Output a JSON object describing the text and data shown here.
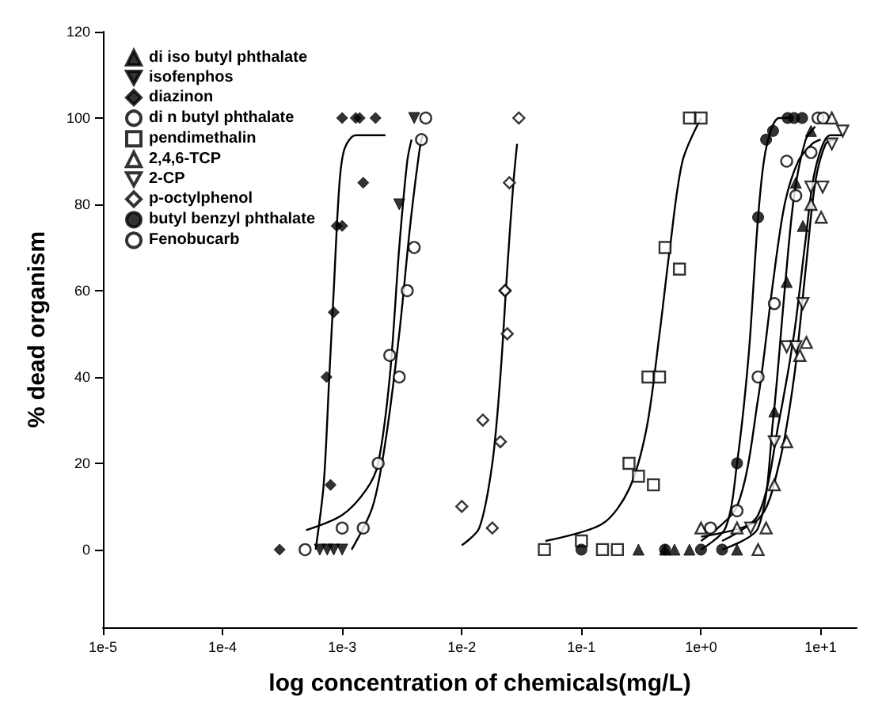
{
  "chart_data": {
    "type": "scatter",
    "xlabel": "log concentration of chemicals(mg/L)",
    "ylabel": "% dead organism",
    "log": "x",
    "grid": false,
    "legend": "top left",
    "xlim": [
      1e-05,
      20
    ],
    "xticks": [
      {
        "value": 1e-05,
        "label": "1e-5"
      },
      {
        "value": 0.0001,
        "label": "1e-4"
      },
      {
        "value": 0.001,
        "label": "1e-3"
      },
      {
        "value": 0.01,
        "label": "1e-2"
      },
      {
        "value": 0.1,
        "label": "1e-1"
      },
      {
        "value": 1,
        "label": "1e+0"
      },
      {
        "value": 10,
        "label": "1e+1"
      }
    ],
    "ylim": [
      -18,
      120
    ],
    "yticks": [
      0,
      20,
      40,
      60,
      80,
      100,
      120
    ],
    "series": [
      {
        "name": "di iso butyl phthalate",
        "marker": "triangle",
        "color": "#000000",
        "x": [
          0.3,
          0.5,
          0.6,
          0.8,
          2.0,
          4.1,
          5.2,
          6.2,
          7.1,
          8.3
        ],
        "values": [
          0,
          0,
          0,
          0,
          0,
          32,
          62,
          85,
          75,
          97
        ]
      },
      {
        "name": "isofenphos",
        "marker": "triangle-down",
        "color": "#000000",
        "x": [
          0.00065,
          0.00075,
          0.00085,
          0.001,
          0.003,
          0.004
        ],
        "values": [
          0,
          0,
          0,
          0,
          80,
          100
        ]
      },
      {
        "name": "diazinon",
        "marker": "diamond",
        "color": "#000000",
        "x": [
          0.0003,
          0.0008,
          0.00074,
          0.00085,
          0.0009,
          0.001,
          0.0015,
          0.001,
          0.0013,
          0.0014,
          0.0019
        ],
        "values": [
          0,
          15,
          40,
          55,
          75,
          75,
          85,
          100,
          100,
          100,
          100
        ]
      },
      {
        "name": "di n butyl phthalate",
        "marker": "circle-open",
        "color": "#000000",
        "x": [
          1.2,
          2.0,
          3.0,
          4.1,
          5.2,
          6.2,
          8.3,
          9.5,
          10.5
        ],
        "values": [
          5,
          9,
          40,
          57,
          90,
          82,
          92,
          100,
          100
        ]
      },
      {
        "name": "pendimethalin",
        "marker": "square-open",
        "color": "#000000",
        "x": [
          0.049,
          0.1,
          0.15,
          0.2,
          0.25,
          0.3,
          0.4,
          0.36,
          0.45,
          0.5,
          0.66,
          0.8,
          1.0
        ],
        "values": [
          0,
          2,
          0,
          0,
          20,
          17,
          15,
          40,
          40,
          70,
          65,
          100,
          100
        ]
      },
      {
        "name": "2,4,6-TCP",
        "marker": "triangle-open",
        "color": "#000000",
        "x": [
          1.0,
          2.0,
          3.0,
          3.5,
          4.1,
          5.2,
          6.7,
          7.6,
          8.3,
          10.1,
          12.4
        ],
        "values": [
          5,
          5,
          0,
          5,
          15,
          25,
          45,
          48,
          80,
          77,
          100
        ]
      },
      {
        "name": "2-CP",
        "marker": "triangle-down-open",
        "color": "#000000",
        "x": [
          2.6,
          4.1,
          5.2,
          6.2,
          7.1,
          8.3,
          10.4,
          12.4,
          15.3
        ],
        "values": [
          5,
          25,
          47,
          47,
          57,
          84,
          84,
          94,
          97
        ]
      },
      {
        "name": "p-octylphenol",
        "marker": "diamond-open",
        "color": "#000000",
        "x": [
          0.01,
          0.018,
          0.015,
          0.021,
          0.024,
          0.023,
          0.023,
          0.025,
          0.03
        ],
        "values": [
          10,
          5,
          30,
          25,
          50,
          60,
          60,
          85,
          100
        ]
      },
      {
        "name": "butyl benzyl phthalate",
        "marker": "circle",
        "color": "#000000",
        "x": [
          0.1,
          0.5,
          1.0,
          1.5,
          2.0,
          3.0,
          3.5,
          4.0,
          5.3,
          6.0,
          7.0
        ],
        "values": [
          0,
          0,
          0,
          0,
          20,
          77,
          95,
          97,
          100,
          100,
          100
        ]
      },
      {
        "name": "Fenobucarb",
        "marker": "circle-open",
        "color": "#000000",
        "x": [
          0.00049,
          0.001,
          0.0015,
          0.002,
          0.0025,
          0.003,
          0.0035,
          0.004,
          0.0046,
          0.005
        ],
        "values": [
          0,
          5,
          5,
          20,
          45,
          40,
          60,
          70,
          95,
          100
        ]
      },
      {
        "type": "line",
        "marker": "none",
        "color": "#000000",
        "x": [
          0.0006,
          0.0007,
          0.00078,
          0.00085,
          0.00095,
          0.00105,
          0.0013,
          0.0023
        ],
        "values": [
          0,
          15,
          40,
          60,
          85,
          93,
          96,
          96
        ]
      },
      {
        "type": "line",
        "marker": "none",
        "color": "#000000",
        "x": [
          0.0005,
          0.001,
          0.0016,
          0.002,
          0.0025,
          0.003,
          0.0035,
          0.0038
        ],
        "values": [
          4.5,
          8,
          14,
          20,
          40,
          70,
          90,
          95
        ]
      },
      {
        "type": "line",
        "marker": "none",
        "color": "#000000",
        "x": [
          0.0012,
          0.0018,
          0.0023,
          0.003,
          0.0037,
          0.0044,
          0.0047
        ],
        "values": [
          0,
          10,
          25,
          50,
          75,
          92,
          96
        ]
      },
      {
        "type": "line",
        "marker": "none",
        "color": "#000000",
        "x": [
          0.01,
          0.014,
          0.018,
          0.021,
          0.024,
          0.027,
          0.029
        ],
        "values": [
          1,
          5,
          20,
          40,
          65,
          85,
          94
        ]
      },
      {
        "type": "line",
        "marker": "none",
        "color": "#000000",
        "x": [
          0.05,
          0.15,
          0.25,
          0.35,
          0.45,
          0.55,
          0.7,
          1.0
        ],
        "values": [
          2,
          6,
          14,
          28,
          50,
          70,
          90,
          100
        ]
      },
      {
        "type": "line",
        "marker": "none",
        "color": "#000000",
        "x": [
          1.0,
          1.6,
          2.0,
          2.5,
          3.0,
          3.5,
          4.5,
          6.0
        ],
        "values": [
          0,
          5,
          20,
          45,
          77,
          93,
          100,
          100
        ]
      },
      {
        "type": "line",
        "marker": "none",
        "color": "#000000",
        "x": [
          1.5,
          3.0,
          4.0,
          5.0,
          6.0,
          7.5,
          9.0
        ],
        "values": [
          0,
          5,
          30,
          60,
          82,
          95,
          98
        ]
      },
      {
        "type": "line",
        "marker": "none",
        "color": "#000000",
        "x": [
          1.0,
          2.0,
          3.0,
          4.0,
          5.0,
          6.5,
          8.5,
          10.0
        ],
        "values": [
          2,
          10,
          35,
          62,
          80,
          90,
          94,
          95
        ]
      },
      {
        "type": "line",
        "marker": "none",
        "color": "#000000",
        "x": [
          1.0,
          3.0,
          4.5,
          6.0,
          7.5,
          9.0,
          11.0,
          13.0
        ],
        "values": [
          3,
          7,
          20,
          40,
          65,
          85,
          94,
          95
        ]
      },
      {
        "type": "line",
        "marker": "none",
        "color": "#000000",
        "x": [
          1.5,
          3.0,
          4.5,
          6.0,
          7.5,
          9.0,
          12.0,
          15.0
        ],
        "values": [
          2,
          8,
          30,
          50,
          72,
          88,
          96,
          96
        ]
      }
    ]
  }
}
